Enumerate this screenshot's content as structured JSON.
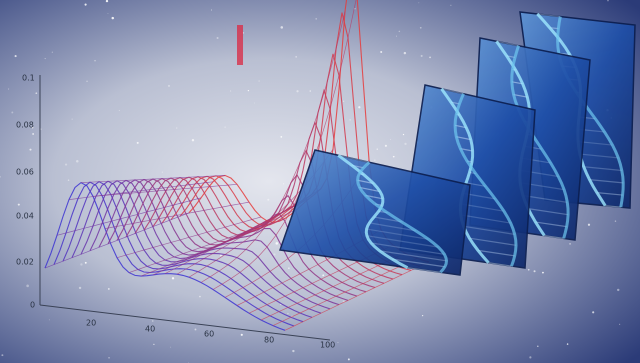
{
  "plot": {
    "y_labels": [
      "0.1",
      "0.08",
      "0.06",
      "0.04",
      "0.02",
      "0"
    ],
    "x_labels": [
      "20",
      "40",
      "60",
      "80",
      "100"
    ]
  }
}
